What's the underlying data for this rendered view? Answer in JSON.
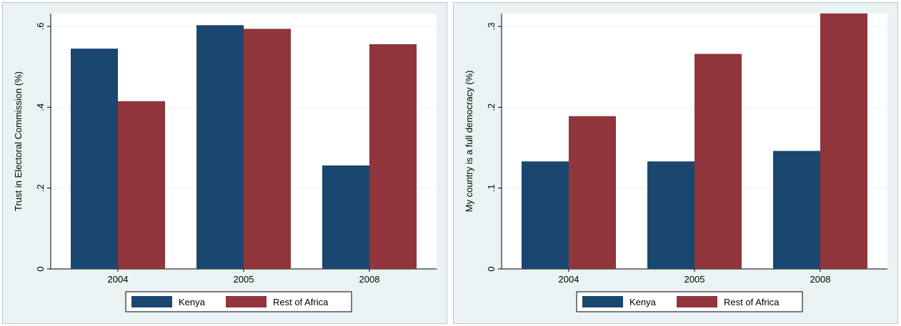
{
  "colors": {
    "kenya": "#1a476f",
    "rest_of_africa": "#90353b",
    "panel_bg": "#eaf2f3",
    "plot_bg": "#ffffff",
    "grid": "#eaf2f3"
  },
  "chart_data": [
    {
      "type": "bar",
      "categories": [
        "2004",
        "2005",
        "2008"
      ],
      "series": [
        {
          "name": "Kenya",
          "values": [
            0.545,
            0.603,
            0.256
          ]
        },
        {
          "name": "Rest of Africa",
          "values": [
            0.415,
            0.594,
            0.556
          ]
        }
      ],
      "ylabel": "Trust in Electoral Commission (%)",
      "xlabel": "",
      "ylim": [
        0,
        0.6
      ],
      "yticks": [
        0,
        0.2,
        0.4,
        0.6
      ],
      "yticklabels": [
        "0",
        ".2",
        ".4",
        ".6"
      ],
      "grid": true,
      "legend": "bottom"
    },
    {
      "type": "bar",
      "categories": [
        "2004",
        "2005",
        "2008"
      ],
      "series": [
        {
          "name": "Kenya",
          "values": [
            0.133,
            0.133,
            0.146
          ]
        },
        {
          "name": "Rest of Africa",
          "values": [
            0.189,
            0.266,
            0.316
          ]
        }
      ],
      "ylabel": "My country is a full democracy (%)",
      "xlabel": "",
      "ylim": [
        0,
        0.3
      ],
      "yticks": [
        0,
        0.1,
        0.2,
        0.3
      ],
      "yticklabels": [
        "0",
        ".1",
        ".2",
        ".3"
      ],
      "grid": true,
      "legend": "bottom"
    }
  ]
}
